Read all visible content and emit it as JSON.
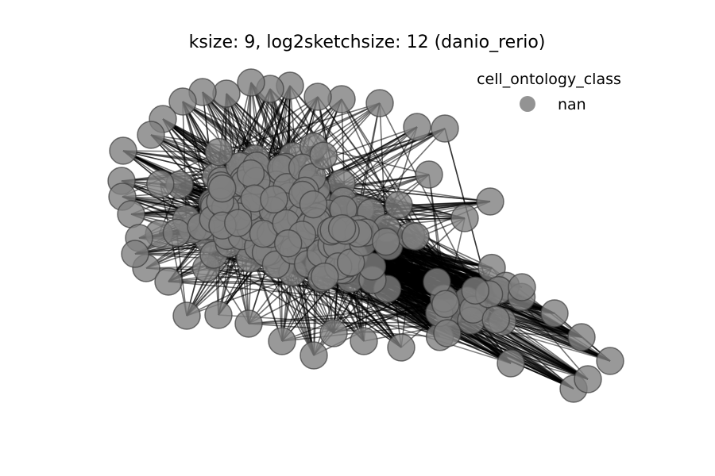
{
  "chart_data": {
    "type": "scatter",
    "subtype": "network-graph",
    "title": "ksize: 9, log2sketchsize: 12 (danio_rerio)",
    "legend": {
      "title": "cell_ontology_class",
      "placement": "top-right",
      "entries": [
        {
          "label": "nan",
          "color": "#808080"
        }
      ]
    },
    "axes_visible": false,
    "grid": false,
    "node_color": "#808080",
    "edge_color": "#000000"
  }
}
